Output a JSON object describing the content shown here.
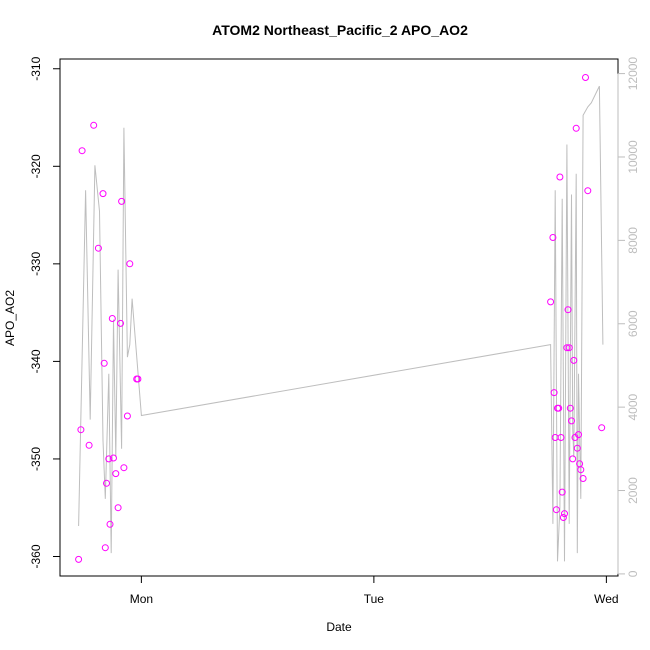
{
  "chart_data": {
    "type": "scatter",
    "title": "ATOM2 Northeast_Pacific_2 APO_AO2",
    "xlabel": "Date",
    "ylabel": "APO_AO2",
    "x_ticks": [
      "Mon",
      "Tue",
      "Wed"
    ],
    "xlim_days": [
      -0.35,
      2.05
    ],
    "ylim": [
      -362,
      -309
    ],
    "y_ticks": [
      -310,
      -320,
      -330,
      -340,
      -350,
      -360
    ],
    "y2lim": [
      -50,
      12350
    ],
    "y2_ticks": [
      0,
      2000,
      4000,
      6000,
      8000,
      10000,
      12000
    ],
    "grid": false,
    "colors": {
      "points": "#ff00ff",
      "line": "#bebebe",
      "axis": "#000000",
      "right_axis": "#bdbdbd"
    },
    "series": [
      {
        "kind": "points",
        "x_days": [
          -0.255,
          -0.225,
          -0.205,
          -0.185,
          -0.165,
          -0.16,
          -0.155,
          -0.15,
          -0.14,
          -0.135,
          -0.125,
          -0.12,
          -0.11,
          -0.1,
          -0.09,
          -0.085,
          -0.075,
          -0.06,
          -0.05,
          -0.02,
          -0.015,
          -0.27,
          -0.26,
          1.76,
          1.77,
          1.775,
          1.78,
          1.785,
          1.79,
          1.795,
          1.8,
          1.805,
          1.81,
          1.815,
          1.82,
          1.83,
          1.835,
          1.84,
          1.845,
          1.85,
          1.855,
          1.86,
          1.865,
          1.87,
          1.875,
          1.88,
          1.885,
          1.89,
          1.9,
          1.91,
          1.92,
          1.98
        ],
        "y": [
          -318.4,
          -348.6,
          -315.8,
          -328.4,
          -322.8,
          -340.2,
          -359.1,
          -352.5,
          -350.0,
          -356.7,
          -335.6,
          -349.9,
          -351.5,
          -355.0,
          -336.1,
          -323.6,
          -350.9,
          -345.6,
          -330.0,
          -341.8,
          -341.8,
          -360.3,
          -347.0,
          -333.9,
          -327.3,
          -343.2,
          -347.8,
          -355.2,
          -344.8,
          -344.8,
          -321.1,
          -347.8,
          -353.4,
          -356.0,
          -355.6,
          -338.6,
          -334.7,
          -338.6,
          -344.8,
          -346.1,
          -350.0,
          -339.9,
          -347.8,
          -316.1,
          -348.9,
          -347.5,
          -350.5,
          -351.1,
          -352.0,
          -310.9,
          -322.5,
          -346.8
        ]
      },
      {
        "kind": "line",
        "x_days": [
          -0.27,
          -0.24,
          -0.22,
          -0.2,
          -0.18,
          -0.165,
          -0.155,
          -0.14,
          -0.13,
          -0.12,
          -0.11,
          -0.1,
          -0.085,
          -0.075,
          -0.06,
          -0.05,
          -0.04,
          0.0,
          1.76,
          1.77,
          1.78,
          1.79,
          1.8,
          1.81,
          1.82,
          1.83,
          1.84,
          1.85,
          1.855,
          1.86,
          1.87,
          1.875,
          1.88,
          1.89,
          1.9,
          1.92,
          1.935,
          1.97,
          1.985
        ],
        "y2": [
          1150,
          9200,
          3700,
          9800,
          8700,
          3200,
          1800,
          4800,
          500,
          6100,
          2800,
          7300,
          3000,
          10700,
          5200,
          5500,
          6600,
          3800,
          5500,
          1200,
          9200,
          300,
          1600,
          9000,
          300,
          10300,
          1200,
          9100,
          3500,
          2800,
          9600,
          500,
          4800,
          1800,
          11000,
          11200,
          11300,
          11700,
          5500
        ]
      }
    ]
  }
}
